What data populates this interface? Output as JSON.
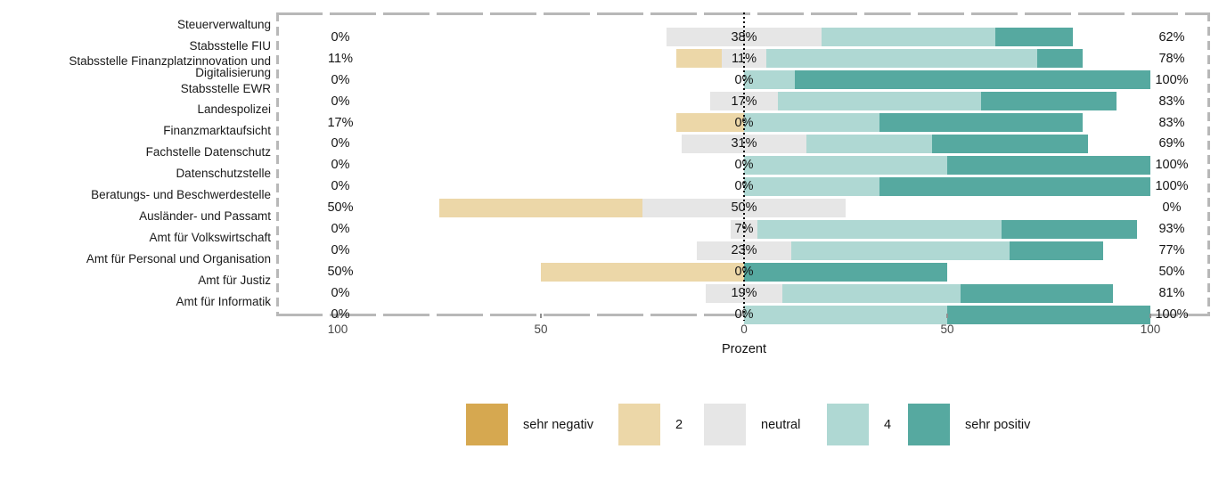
{
  "chart_data": {
    "type": "bar",
    "variant": "diverging-stacked-horizontal-likert",
    "title": "",
    "xlabel": "Prozent",
    "x_ticks": [
      -100,
      -50,
      0,
      50,
      100
    ],
    "x_tick_labels": [
      "100",
      "50",
      "0",
      "50",
      "100"
    ],
    "xlim": [
      -115,
      115
    ],
    "grid": false,
    "legend_position": "bottom",
    "zero_reference_line": true,
    "categories": [
      "Steuerverwaltung",
      "Stabsstelle FIU",
      "Stabsstelle Finanzplatzinnovation und Digitalisierung",
      "Stabsstelle EWR",
      "Landespolizei",
      "Finanzmarktaufsicht",
      "Fachstelle Datenschutz",
      "Datenschutzstelle",
      "Beratungs- und Beschwerdestelle",
      "Ausländer- und Passamt",
      "Amt für Volkswirtschaft",
      "Amt für Personal und Organisation",
      "Amt für Justiz",
      "Amt für Informatik"
    ],
    "series": [
      {
        "name": "sehr negativ",
        "color": "#d6a850",
        "values": [
          0,
          0,
          0,
          0,
          0,
          0,
          0,
          0,
          0,
          0,
          0,
          0,
          0,
          0
        ]
      },
      {
        "name": "2",
        "color": "#ecd7a8",
        "values": [
          0,
          11.1,
          0,
          0,
          16.7,
          0,
          0,
          0,
          50,
          0,
          0,
          50,
          0,
          0
        ]
      },
      {
        "name": "neutral",
        "color": "#e6e6e6",
        "values": [
          38.1,
          11.1,
          0,
          16.7,
          0,
          30.8,
          0,
          0,
          50,
          6.7,
          23.1,
          0,
          18.8,
          0
        ]
      },
      {
        "name": "4",
        "color": "#afd8d3",
        "values": [
          42.9,
          66.7,
          12.5,
          50,
          33.3,
          30.8,
          50,
          33.3,
          0,
          60,
          53.8,
          0,
          43.8,
          50
        ]
      },
      {
        "name": "sehr positiv",
        "color": "#56a9a0",
        "values": [
          19,
          11.1,
          87.5,
          33.3,
          50,
          38.5,
          50,
          66.7,
          0,
          33.3,
          23.1,
          50,
          37.5,
          50
        ]
      }
    ],
    "value_labels": {
      "negative": [
        "0%",
        "11%",
        "0%",
        "0%",
        "17%",
        "0%",
        "0%",
        "0%",
        "50%",
        "0%",
        "0%",
        "50%",
        "0%",
        "0%"
      ],
      "neutral": [
        "38%",
        "11%",
        "0%",
        "17%",
        "0%",
        "31%",
        "0%",
        "0%",
        "50%",
        "7%",
        "23%",
        "0%",
        "19%",
        "0%"
      ],
      "positive": [
        "62%",
        "78%",
        "100%",
        "83%",
        "83%",
        "69%",
        "100%",
        "100%",
        "0%",
        "93%",
        "77%",
        "50%",
        "81%",
        "100%"
      ]
    }
  },
  "legend": {
    "items": [
      "sehr negativ",
      "2",
      "neutral",
      "4",
      "sehr positiv"
    ]
  },
  "colors": {
    "plot_border": "#b8b8b8",
    "zero_line": "#0a0a0a",
    "tick_text": "#474747",
    "label_text": "#141414"
  }
}
